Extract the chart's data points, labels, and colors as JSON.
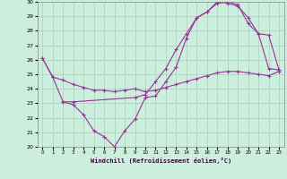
{
  "xlabel": "Windchill (Refroidissement éolien,°C)",
  "bg_color": "#cceedd",
  "line_color": "#993399",
  "grid_color": "#aaccbb",
  "xlim": [
    -0.5,
    23.5
  ],
  "ylim": [
    20,
    30
  ],
  "xticks": [
    0,
    1,
    2,
    3,
    4,
    5,
    6,
    7,
    8,
    9,
    10,
    11,
    12,
    13,
    14,
    15,
    16,
    17,
    18,
    19,
    20,
    21,
    22,
    23
  ],
  "yticks": [
    20,
    21,
    22,
    23,
    24,
    25,
    26,
    27,
    28,
    29,
    30
  ],
  "series1_x": [
    0,
    1,
    2,
    3,
    4,
    5,
    6,
    7,
    8,
    9,
    10,
    11,
    12,
    13,
    14,
    15,
    16,
    17,
    18,
    19,
    20,
    21,
    22,
    23
  ],
  "series1_y": [
    26.1,
    24.8,
    24.6,
    24.3,
    24.1,
    23.9,
    23.9,
    23.8,
    23.9,
    24.0,
    23.8,
    23.9,
    24.1,
    24.3,
    24.5,
    24.7,
    24.9,
    25.1,
    25.2,
    25.2,
    25.1,
    25.0,
    24.9,
    25.2
  ],
  "series2_x": [
    0,
    1,
    2,
    3,
    4,
    5,
    6,
    7,
    8,
    9,
    10,
    11,
    12,
    13,
    14,
    15,
    16,
    17,
    18,
    19,
    20,
    21,
    22,
    23
  ],
  "series2_y": [
    26.1,
    24.8,
    23.1,
    22.9,
    22.2,
    21.1,
    20.7,
    20.0,
    21.1,
    21.9,
    23.4,
    23.5,
    24.5,
    25.5,
    27.5,
    28.9,
    29.3,
    30.0,
    29.9,
    29.7,
    28.9,
    27.8,
    25.4,
    25.3
  ],
  "series3_x": [
    2,
    3,
    9,
    10,
    11,
    12,
    13,
    14,
    15,
    16,
    17,
    18,
    19,
    20,
    21,
    22,
    23
  ],
  "series3_y": [
    23.1,
    23.1,
    23.4,
    23.6,
    24.5,
    25.4,
    26.7,
    27.8,
    28.9,
    29.3,
    29.9,
    30.0,
    29.8,
    28.5,
    27.8,
    27.7,
    25.3
  ]
}
